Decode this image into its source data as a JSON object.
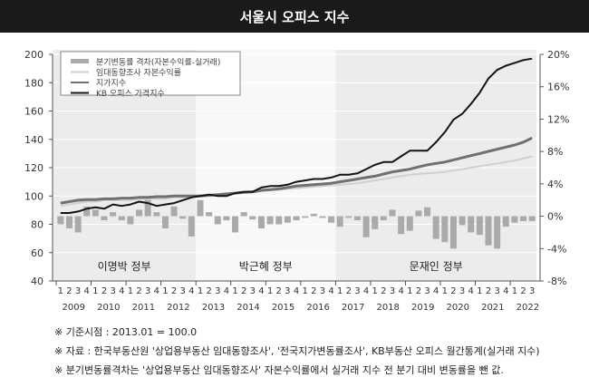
{
  "title": "서울시 오피스 지수",
  "chart_data": {
    "type": "bar+line",
    "title": "서울시 오피스 지수",
    "left_axis": {
      "ylim": [
        40,
        200
      ],
      "ticks": [
        40,
        60,
        80,
        100,
        120,
        140,
        160,
        180,
        200
      ]
    },
    "right_axis": {
      "ylim": [
        -8,
        20
      ],
      "ticks": [
        "-8%",
        "-4%",
        "0%",
        "4%",
        "8%",
        "12%",
        "16%",
        "20%"
      ],
      "tick_values": [
        -8,
        -4,
        0,
        4,
        8,
        12,
        16,
        20
      ]
    },
    "years": [
      "2009",
      "2010",
      "2011",
      "2012",
      "2013",
      "2014",
      "2015",
      "2016",
      "2017",
      "2018",
      "2019",
      "2020",
      "2021",
      "2022"
    ],
    "quarters_per_year": [
      4,
      4,
      4,
      4,
      4,
      4,
      4,
      4,
      4,
      4,
      4,
      4,
      4,
      3
    ],
    "eras": [
      {
        "label": "이명박 정부",
        "from_year": 2009,
        "to_year": 2012,
        "shade": "#ececec"
      },
      {
        "label": "박근혜 정부",
        "from_year": 2013,
        "to_year": 2016,
        "shade": "#f8f8f8"
      },
      {
        "label": "문재인 정부",
        "from_year": 2017,
        "to_year": 2022,
        "shade": "#ececec"
      }
    ],
    "legend": [
      {
        "label": "분기변동률 격차(자본수익률-실거래)",
        "kind": "bar",
        "color": "#aaaaaa"
      },
      {
        "label": "임대동향조사 자본수익률",
        "kind": "line",
        "color": "#d0d0d0"
      },
      {
        "label": "지가지수",
        "kind": "line",
        "color": "#707070"
      },
      {
        "label": "KB 오피스 가격지수",
        "kind": "line",
        "color": "#1a1010"
      }
    ],
    "series": [
      {
        "name": "분기변동률 격차(자본수익률-실거래)",
        "axis": "right",
        "type": "bar",
        "values": [
          -1.0,
          -1.5,
          -2.0,
          1.2,
          0.8,
          -0.5,
          0.5,
          -0.5,
          -1.0,
          0.8,
          2.0,
          0.5,
          -1.5,
          1.2,
          -0.3,
          -2.5,
          2.0,
          0.5,
          -1.0,
          -0.5,
          -2.0,
          0.5,
          -0.4,
          -1.5,
          -1.0,
          -1.0,
          -0.8,
          -0.5,
          -0.2,
          0.3,
          -0.2,
          -0.8,
          -1.3,
          -0.2,
          -0.5,
          -2.6,
          -1.6,
          -0.5,
          0.8,
          -2.2,
          -1.8,
          0.7,
          1.1,
          -2.8,
          -3.2,
          -4.0,
          -1.1,
          -2.0,
          -2.3,
          -3.6,
          -4.0,
          -1.3,
          -0.8,
          -0.6,
          -0.6
        ]
      },
      {
        "name": "임대동향조사 자본수익률",
        "axis": "left",
        "type": "line",
        "values": [
          93,
          94,
          95,
          96,
          96,
          97,
          97,
          97,
          97,
          98,
          98,
          98,
          98,
          99,
          99,
          99.5,
          100,
          100.5,
          101,
          101.5,
          102,
          102.5,
          103,
          103.5,
          104,
          104.5,
          105,
          105.5,
          106,
          106.5,
          107,
          107.5,
          108,
          108.5,
          109,
          110,
          111,
          112,
          113,
          114,
          115,
          115.5,
          116,
          116.5,
          117,
          118,
          119,
          120,
          121,
          122,
          123,
          124,
          125,
          126.5,
          128
        ]
      },
      {
        "name": "지가지수",
        "axis": "left",
        "type": "line",
        "values": [
          95,
          96,
          97,
          97.5,
          97.5,
          98,
          98,
          98.5,
          98.5,
          99,
          99,
          99.5,
          99.5,
          100,
          100,
          100,
          100,
          100.5,
          101,
          101.5,
          102,
          102.5,
          103,
          104,
          104.5,
          105,
          106,
          107,
          107.5,
          108,
          108.5,
          109,
          110,
          111,
          112,
          113,
          114,
          115.5,
          117,
          118,
          119,
          120.5,
          122,
          123,
          124,
          125.5,
          127,
          128.5,
          130,
          131.5,
          133,
          134.5,
          136,
          138,
          141
        ]
      },
      {
        "name": "KB 오피스 가격지수",
        "axis": "left",
        "type": "line",
        "values": [
          88,
          88,
          89,
          91,
          92,
          91,
          94,
          93,
          94,
          96,
          95,
          93,
          94,
          95,
          97,
          99,
          100,
          101,
          100,
          100,
          102,
          103,
          103,
          106,
          107,
          107,
          108,
          110,
          111,
          112,
          112,
          113,
          115,
          115,
          116,
          119,
          122,
          124,
          124,
          128,
          132,
          132,
          132,
          138,
          145,
          154,
          158,
          165,
          173,
          183,
          189,
          192,
          194,
          196,
          197
        ]
      }
    ]
  },
  "notes": [
    "※ 기준시점 : 2013.01 = 100.0",
    "※ 자료 : 한국부동산원 '상업용부동산 임대동향조사', '전국지가변동률조사', KB부동산 오피스 월간통계(실거래 지수)",
    "※ 분기변동률격차는 '상업용부동산 임대동향조사' 자본수익률에서 실거래 지수 전 분기 대비 변동률을 뺀 값."
  ]
}
